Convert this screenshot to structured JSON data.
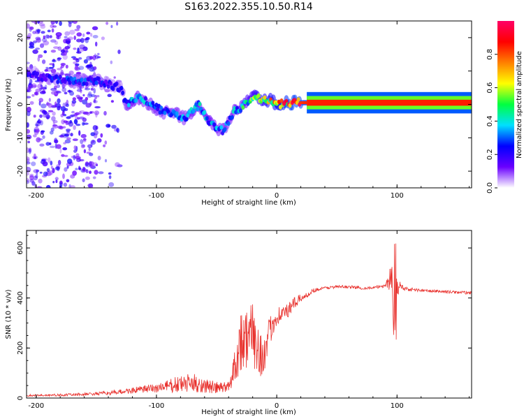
{
  "title": "S163.2022.355.10.50.R14",
  "chart_data": [
    {
      "type": "heatmap",
      "xlabel": "Height of straight line (km)",
      "ylabel": "Frequency (Hz)",
      "xlim": [
        -208,
        162
      ],
      "ylim": [
        -25,
        25
      ],
      "xticks": [
        -200,
        -100,
        0,
        100
      ],
      "yticks": [
        -20,
        -10,
        0,
        10,
        20
      ],
      "colorbar": {
        "label": "Normalized spectral amplitude",
        "range": [
          0.0,
          1.0
        ],
        "ticks": [
          "0.0",
          "0.2",
          "0.4",
          "0.6",
          "0.8"
        ],
        "tick_values": [
          0.0,
          0.2,
          0.4,
          0.6,
          0.8
        ],
        "colormap": [
          "#ffffff",
          "#6a00ff",
          "#0000ff",
          "#00e0ff",
          "#00ff40",
          "#ffff00",
          "#ff8000",
          "#ff0000",
          "#ff0066"
        ]
      },
      "ridge": {
        "x": [
          -205,
          -190,
          -170,
          -150,
          -140,
          -130,
          -125,
          -115,
          -105,
          -95,
          -85,
          -75,
          -65,
          -55,
          -45,
          -40,
          -35,
          -30,
          -25,
          -20,
          -15,
          -10,
          -5,
          0,
          10,
          30,
          60,
          90,
          95,
          100,
          120,
          162
        ],
        "y": [
          9,
          8,
          7,
          7,
          6,
          5,
          0,
          2,
          0,
          -2,
          -3,
          -4,
          0,
          -6,
          -8,
          -5,
          -2,
          -1,
          1,
          2,
          2,
          1,
          1,
          0,
          0.5,
          0.5,
          0.5,
          1,
          0,
          1,
          0.5,
          0.5
        ],
        "amplitude": [
          0.2,
          0.22,
          0.25,
          0.25,
          0.2,
          0.2,
          0.3,
          0.35,
          0.3,
          0.28,
          0.3,
          0.3,
          0.35,
          0.35,
          0.3,
          0.3,
          0.35,
          0.4,
          0.45,
          0.5,
          0.6,
          0.6,
          0.65,
          0.7,
          0.8,
          0.85,
          0.85,
          0.85,
          0.75,
          0.85,
          0.85,
          0.85
        ]
      },
      "noise_region_x": [
        -208,
        -130
      ]
    },
    {
      "type": "line",
      "xlabel": "Height of straight line (km)",
      "ylabel": "SNR (10 * v/v)",
      "xlim": [
        -208,
        162
      ],
      "ylim": [
        0,
        670
      ],
      "xticks": [
        -200,
        -100,
        0,
        100
      ],
      "yticks": [
        0,
        200,
        400,
        600
      ],
      "series": [
        {
          "color": "#e8302c",
          "x": [
            -208,
            -180,
            -160,
            -140,
            -120,
            -100,
            -80,
            -70,
            -60,
            -50,
            -40,
            -35,
            -30,
            -25,
            -20,
            -15,
            -10,
            -5,
            0,
            5,
            10,
            15,
            20,
            25,
            30,
            40,
            50,
            60,
            70,
            80,
            90,
            95,
            98,
            100,
            105,
            110,
            120,
            140,
            162
          ],
          "y": [
            10,
            12,
            15,
            20,
            30,
            40,
            55,
            60,
            50,
            40,
            45,
            130,
            230,
            240,
            250,
            200,
            160,
            280,
            330,
            340,
            350,
            380,
            400,
            410,
            430,
            440,
            445,
            445,
            440,
            440,
            450,
            480,
            440,
            450,
            440,
            435,
            430,
            425,
            420
          ],
          "noise_amplitude": [
            4,
            5,
            6,
            8,
            12,
            20,
            35,
            40,
            30,
            25,
            20,
            80,
            120,
            130,
            130,
            110,
            90,
            60,
            40,
            30,
            30,
            25,
            15,
            10,
            8,
            6,
            6,
            6,
            6,
            6,
            8,
            60,
            150,
            40,
            10,
            8,
            6,
            6,
            6
          ]
        }
      ]
    }
  ]
}
